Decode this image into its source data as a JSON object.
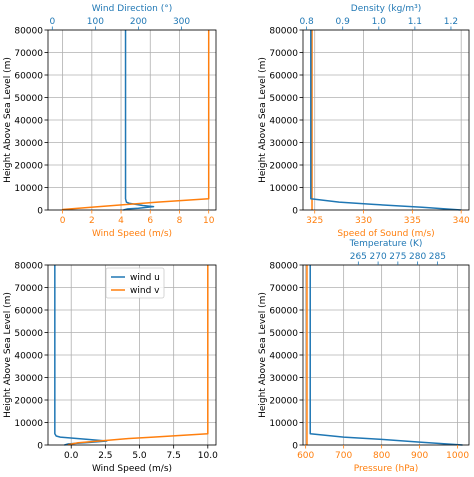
{
  "colors": {
    "blue": "#1f77b4",
    "orange": "#ff7f0e",
    "grid": "#b0b0b0",
    "axis": "#000000"
  },
  "chart_data": [
    {
      "type": "line",
      "id": "wind-speed-direction",
      "ylabel": "Height Above Sea Level (m)",
      "ylim": [
        0,
        80000
      ],
      "yticks": [
        0,
        10000,
        20000,
        30000,
        40000,
        50000,
        60000,
        70000,
        80000
      ],
      "grid": true,
      "x_bottom": {
        "label": "Wind Speed (m/s)",
        "color": "#ff7f0e",
        "lim": [
          -1,
          10.5
        ],
        "ticks": [
          0,
          2,
          4,
          6,
          8,
          10
        ]
      },
      "x_top": {
        "label": "Wind Direction (°)",
        "color": "#1f77b4",
        "lim": [
          -10,
          380
        ],
        "ticks": [
          0,
          100,
          200,
          300
        ]
      },
      "series": [
        {
          "axis": "top",
          "color": "#1f77b4",
          "points": [
            [
              170,
              80000
            ],
            [
              170,
              5000
            ],
            [
              172,
              3500
            ],
            [
              178,
              3000
            ],
            [
              210,
              2000
            ],
            [
              235,
              1500
            ],
            [
              200,
              800
            ],
            [
              175,
              500
            ],
            [
              165,
              0
            ]
          ]
        },
        {
          "axis": "bottom",
          "color": "#ff7f0e",
          "points": [
            [
              10,
              80000
            ],
            [
              10,
              5000
            ],
            [
              6.5,
              3500
            ],
            [
              4.5,
              2500
            ],
            [
              2.5,
              1500
            ],
            [
              0,
              200
            ],
            [
              0,
              0
            ]
          ]
        }
      ]
    },
    {
      "type": "line",
      "id": "speed-of-sound-density",
      "ylabel": "Height Above Sea Level (m)",
      "ylim": [
        0,
        80000
      ],
      "yticks": [
        0,
        10000,
        20000,
        30000,
        40000,
        50000,
        60000,
        70000,
        80000
      ],
      "grid": true,
      "x_bottom": {
        "label": "Speed of Sound (m/s)",
        "color": "#ff7f0e",
        "lim": [
          323.8,
          340.8
        ],
        "ticks": [
          325,
          330,
          335,
          340
        ],
        "ticklabels": [
          "325",
          "330",
          "335",
          "340"
        ]
      },
      "x_top": {
        "label": "Density (kg/m³)",
        "color": "#1f77b4",
        "lim": [
          0.79,
          1.25
        ],
        "ticks": [
          0.8,
          0.9,
          1.0,
          1.1,
          1.2
        ],
        "ticklabels": [
          "0.8",
          "0.9",
          "1.0",
          "1.1",
          "1.2"
        ]
      },
      "series": [
        {
          "axis": "top",
          "color": "#ff7f0e",
          "points": [
            [
              0.815,
              80000
            ],
            [
              0.815,
              0
            ]
          ]
        },
        {
          "axis": "bottom",
          "color": "#1f77b4",
          "points": [
            [
              324.6,
              80000
            ],
            [
              324.6,
              5000
            ],
            [
              327.5,
              3500
            ],
            [
              331,
              2500
            ],
            [
              336,
              1200
            ],
            [
              340,
              0
            ]
          ]
        }
      ]
    },
    {
      "type": "line",
      "id": "wind-components",
      "ylabel": "Height Above Sea Level (m)",
      "ylim": [
        0,
        80000
      ],
      "yticks": [
        0,
        10000,
        20000,
        30000,
        40000,
        50000,
        60000,
        70000,
        80000
      ],
      "grid": true,
      "legend": "upper center",
      "x_bottom": {
        "label": "Wind Speed (m/s)",
        "color": "#000000",
        "lim": [
          -1.7,
          10.6
        ],
        "ticks": [
          0,
          2.5,
          5,
          7.5,
          10
        ],
        "ticklabels": [
          "0.0",
          "2.5",
          "5.0",
          "7.5",
          "10.0"
        ]
      },
      "series": [
        {
          "name": "wind u",
          "color": "#1f77b4",
          "points": [
            [
              -1.2,
              80000
            ],
            [
              -1.2,
              5000
            ],
            [
              -1.1,
              4000
            ],
            [
              -0.8,
              3500
            ],
            [
              1.2,
              2500
            ],
            [
              2.6,
              1800
            ],
            [
              1.5,
              1200
            ],
            [
              -0.2,
              500
            ],
            [
              -0.5,
              0
            ]
          ]
        },
        {
          "name": "wind v",
          "color": "#ff7f0e",
          "points": [
            [
              10,
              80000
            ],
            [
              10,
              5000
            ],
            [
              6,
              3500
            ],
            [
              4,
              2800
            ],
            [
              2.5,
              2000
            ],
            [
              0.5,
              1000
            ],
            [
              -0.2,
              200
            ],
            [
              -0.2,
              0
            ]
          ]
        }
      ]
    },
    {
      "type": "line",
      "id": "pressure-temperature",
      "ylabel": "Height Above Sea Level (m)",
      "ylim": [
        0,
        80000
      ],
      "yticks": [
        0,
        10000,
        20000,
        30000,
        40000,
        50000,
        60000,
        70000,
        80000
      ],
      "grid": true,
      "x_bottom": {
        "label": "Pressure (hPa)",
        "color": "#ff7f0e",
        "lim": [
          593,
          1030
        ],
        "ticks": [
          600,
          700,
          800,
          900,
          1000
        ]
      },
      "x_top": {
        "label": "Temperature (K)",
        "color": "#1f77b4",
        "lim": [
          251,
          293
        ],
        "ticks": [
          265,
          270,
          275,
          280,
          285
        ]
      },
      "series": [
        {
          "axis": "top",
          "color": "#ff7f0e",
          "points": [
            [
              252,
              80000
            ],
            [
              252,
              0
            ]
          ]
        },
        {
          "axis": "bottom",
          "color": "#1f77b4",
          "points": [
            [
              612,
              80000
            ],
            [
              612,
              5000
            ],
            [
              700,
              3500
            ],
            [
              800,
              2500
            ],
            [
              900,
              1300
            ],
            [
              1013,
              0
            ]
          ]
        }
      ]
    }
  ]
}
